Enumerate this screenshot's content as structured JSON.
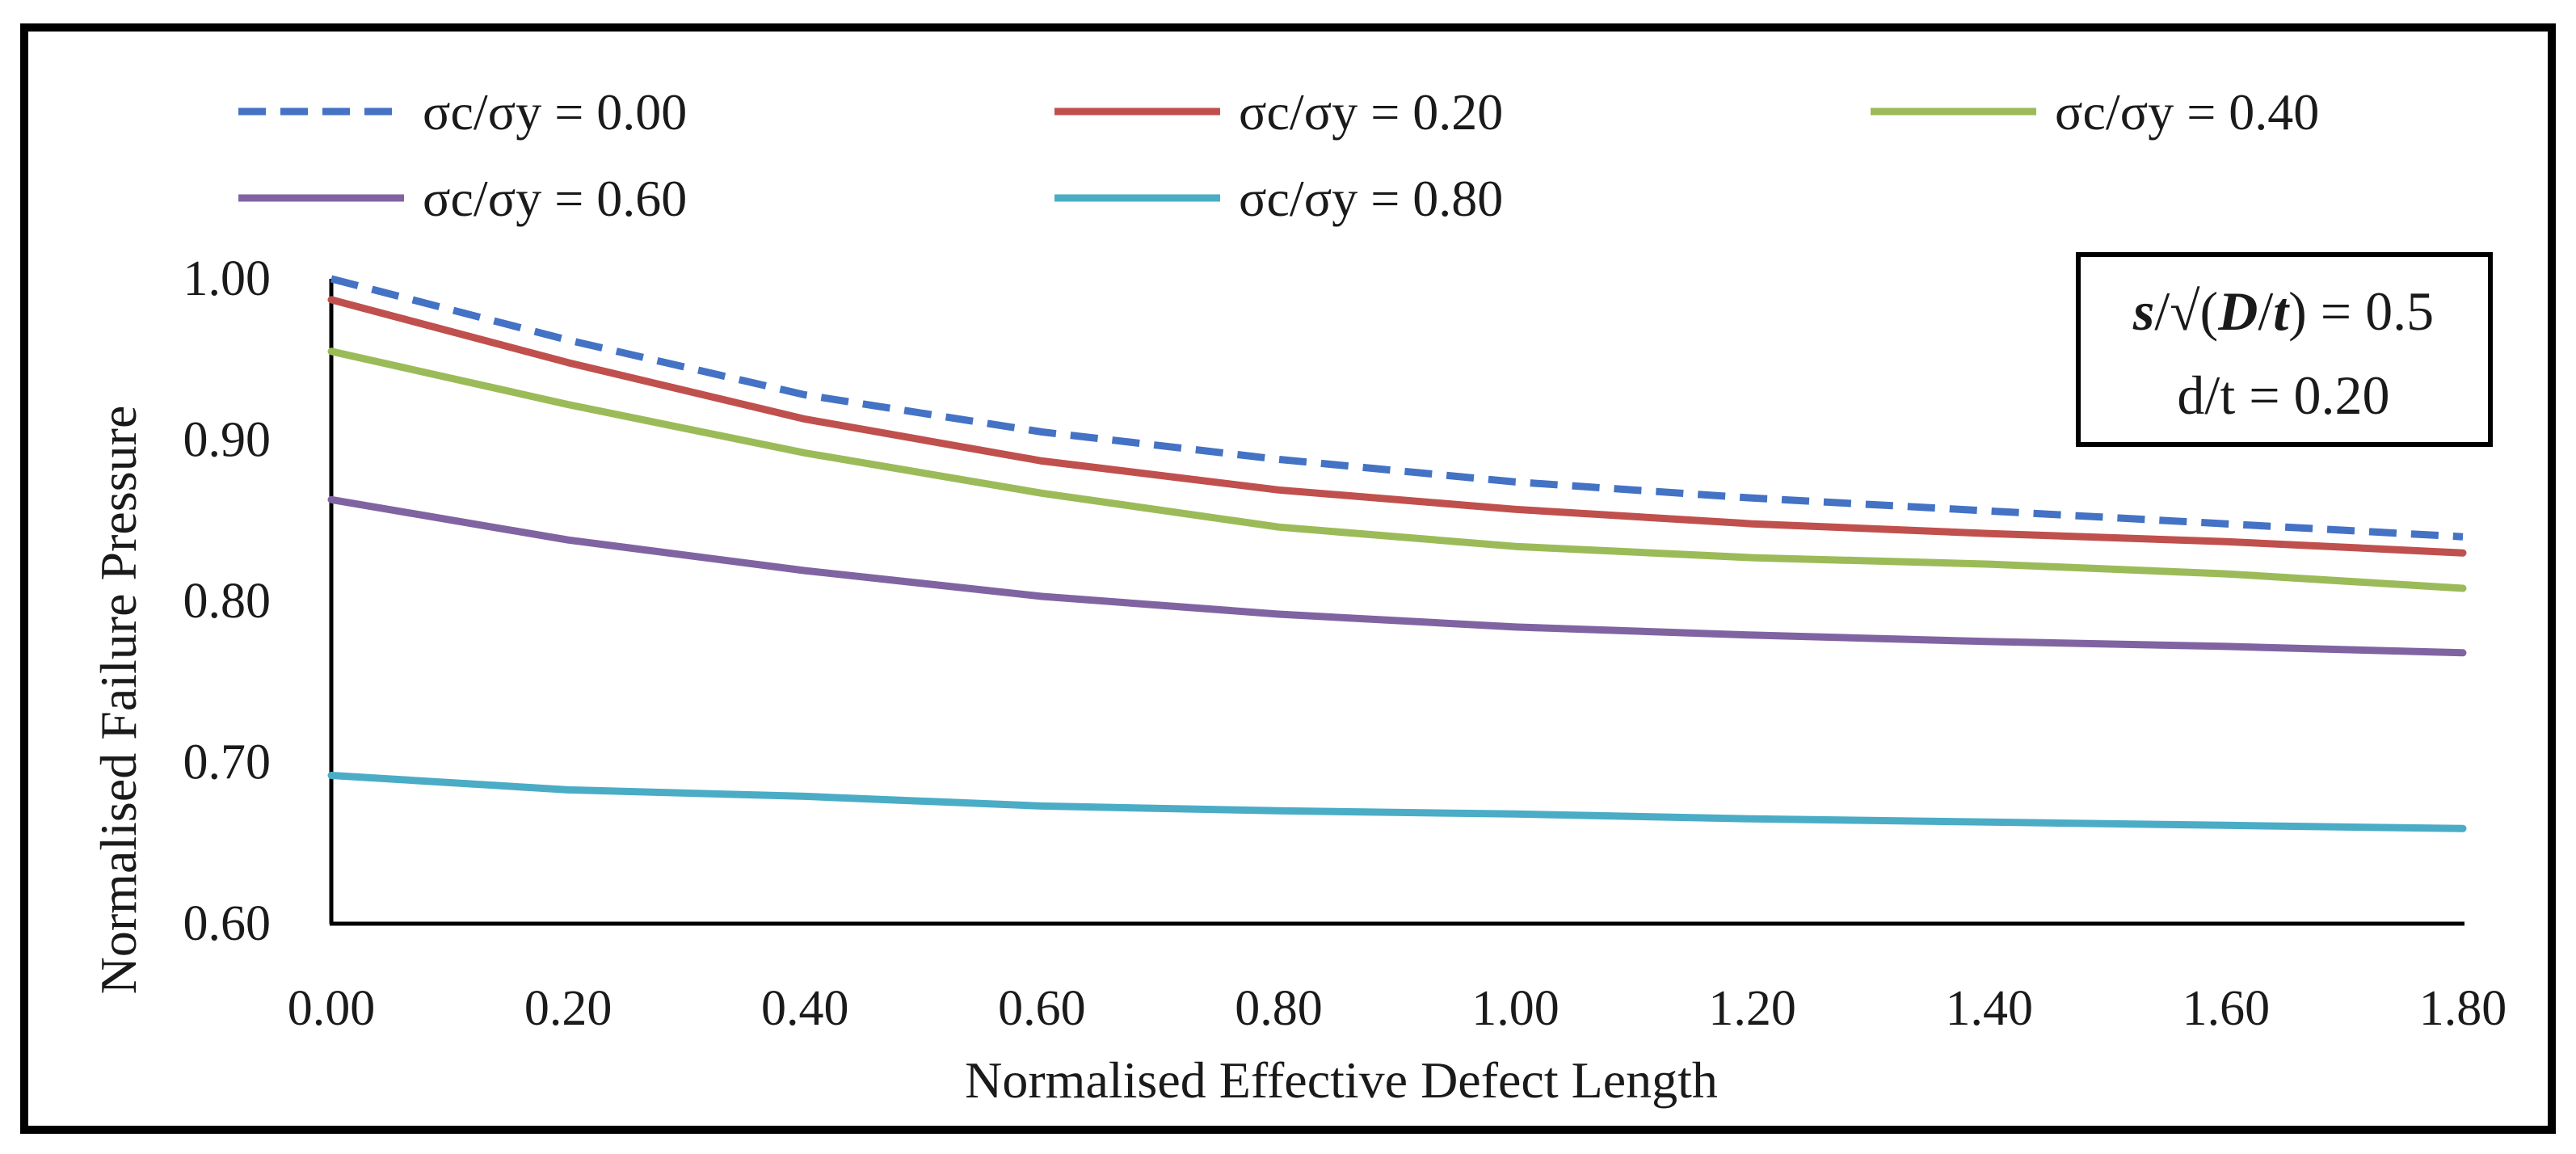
{
  "chart_data": {
    "type": "line",
    "title": "",
    "xlabel": "Normalised Effective Defect Length",
    "ylabel": "Normalised Failure Pressure",
    "xlim": [
      0.0,
      1.8
    ],
    "ylim": [
      0.6,
      1.0
    ],
    "xticks": [
      "0.00",
      "0.20",
      "0.40",
      "0.60",
      "0.80",
      "1.00",
      "1.20",
      "1.40",
      "1.60",
      "1.80"
    ],
    "yticks": [
      "0.60",
      "0.70",
      "0.80",
      "0.90",
      "1.00"
    ],
    "x": [
      0.0,
      0.2,
      0.4,
      0.6,
      0.8,
      1.0,
      1.2,
      1.4,
      1.6,
      1.8
    ],
    "legend_position": "top",
    "series": [
      {
        "name": "σc/σy = 0.00",
        "color": "#4472C4",
        "dash": "dashed",
        "values": [
          1.0,
          0.962,
          0.928,
          0.905,
          0.888,
          0.874,
          0.864,
          0.856,
          0.848,
          0.84
        ]
      },
      {
        "name": "σc/σy = 0.20",
        "color": "#C0504D",
        "dash": "solid",
        "values": [
          0.987,
          0.948,
          0.913,
          0.887,
          0.869,
          0.857,
          0.848,
          0.842,
          0.837,
          0.83
        ]
      },
      {
        "name": "σc/σy = 0.40",
        "color": "#9BBB59",
        "dash": "solid",
        "values": [
          0.955,
          0.922,
          0.892,
          0.867,
          0.846,
          0.834,
          0.827,
          0.823,
          0.817,
          0.808
        ]
      },
      {
        "name": "σc/σy = 0.60",
        "color": "#8064A2",
        "dash": "solid",
        "values": [
          0.863,
          0.838,
          0.819,
          0.803,
          0.792,
          0.784,
          0.779,
          0.775,
          0.772,
          0.768
        ]
      },
      {
        "name": "σc/σy = 0.80",
        "color": "#4BACC6",
        "dash": "solid",
        "values": [
          0.692,
          0.683,
          0.679,
          0.673,
          0.67,
          0.668,
          0.665,
          0.663,
          0.661,
          0.659
        ]
      }
    ],
    "annotation": {
      "line1_s": "s",
      "line1_slash": "/√(",
      "line1_D": "D",
      "line1_slash2": "/",
      "line1_t": "t",
      "line1_end": ") = 0.5",
      "line2": "d/t = 0.20"
    }
  }
}
